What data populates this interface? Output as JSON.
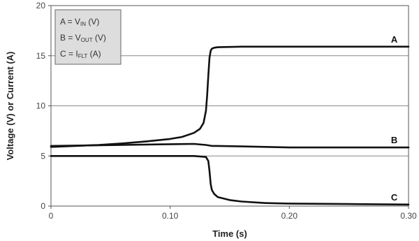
{
  "chart_data": {
    "type": "line",
    "title": "",
    "xlabel": "Time (s)",
    "ylabel": "Voltage (V) or Current (A)",
    "xlim": [
      0,
      0.3
    ],
    "ylim": [
      0,
      20
    ],
    "x_ticks": [
      0,
      0.1,
      0.2,
      0.3
    ],
    "x_tick_labels": [
      "0",
      "0.10",
      "0.20",
      "0.30"
    ],
    "y_ticks": [
      0,
      5,
      10,
      15,
      20
    ],
    "y_tick_labels": [
      "0",
      "5",
      "10",
      "15",
      "20"
    ],
    "grid": "horizontal",
    "legend_position": "top-left",
    "legend": [
      {
        "prefix": "A = V",
        "sub": "IN",
        "suffix": " (V)"
      },
      {
        "prefix": "B = V",
        "sub": "OUT",
        "suffix": " (V)"
      },
      {
        "prefix": "C = I",
        "sub": "FLT",
        "suffix": " (A)"
      }
    ],
    "series": [
      {
        "name": "A",
        "color": "#111111",
        "x": [
          0,
          0.02,
          0.04,
          0.06,
          0.08,
          0.1,
          0.11,
          0.12,
          0.125,
          0.128,
          0.13,
          0.131,
          0.132,
          0.133,
          0.134,
          0.135,
          0.137,
          0.14,
          0.16,
          0.2,
          0.25,
          0.3
        ],
        "y": [
          5.9,
          6.0,
          6.1,
          6.25,
          6.45,
          6.7,
          6.9,
          7.3,
          7.7,
          8.3,
          9.5,
          11.0,
          13.0,
          14.8,
          15.5,
          15.7,
          15.8,
          15.85,
          15.9,
          15.9,
          15.9,
          15.9
        ]
      },
      {
        "name": "B",
        "color": "#111111",
        "x": [
          0,
          0.03,
          0.06,
          0.09,
          0.12,
          0.13,
          0.135,
          0.14,
          0.16,
          0.18,
          0.2,
          0.25,
          0.3
        ],
        "y": [
          6.0,
          6.05,
          6.1,
          6.15,
          6.2,
          6.1,
          6.0,
          6.0,
          5.95,
          5.9,
          5.85,
          5.85,
          5.85
        ]
      },
      {
        "name": "C",
        "color": "#111111",
        "x": [
          0,
          0.05,
          0.1,
          0.12,
          0.13,
          0.132,
          0.133,
          0.134,
          0.135,
          0.137,
          0.14,
          0.15,
          0.16,
          0.18,
          0.2,
          0.25,
          0.3
        ],
        "y": [
          5.0,
          5.0,
          5.0,
          5.0,
          4.9,
          4.5,
          3.5,
          2.2,
          1.6,
          1.2,
          0.9,
          0.6,
          0.45,
          0.3,
          0.25,
          0.2,
          0.15
        ]
      }
    ]
  }
}
